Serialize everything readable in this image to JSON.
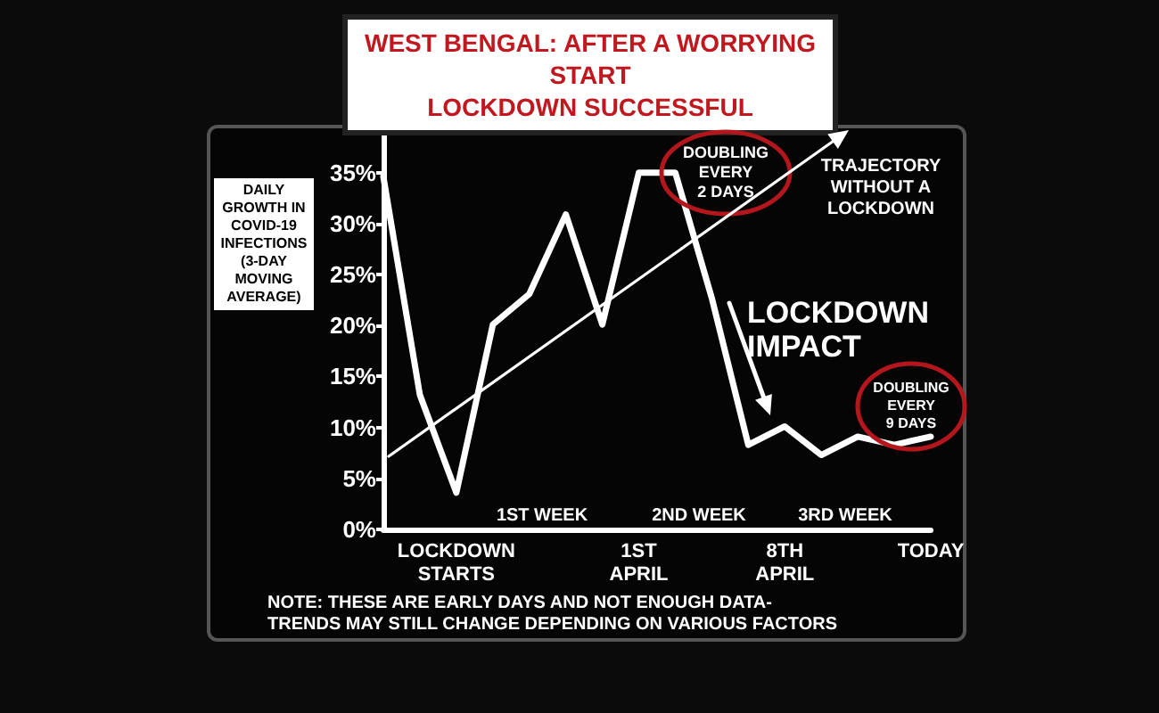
{
  "chart_data": {
    "type": "line",
    "title": "WEST BENGAL: AFTER A WORRYING START\nLOCKDOWN SUCCESSFUL",
    "ylabel": "DAILY GROWTH IN COVID-19 INFECTIONS (3-DAY MOVING AVERAGE)",
    "categories": [
      null,
      null,
      "LOCKDOWN\nSTARTS",
      null,
      null,
      null,
      null,
      "1ST\nAPRIL",
      null,
      null,
      null,
      "8TH\nAPRIL",
      null,
      null,
      null,
      "TODAY"
    ],
    "series": [
      {
        "color": "#ffffff",
        "values": [
          34.6,
          13.2,
          3.6,
          20.1,
          23.1,
          30.9,
          20.1,
          35,
          35,
          22.7,
          8.3,
          10.1,
          7.3,
          9.1,
          8.3,
          9.1
        ]
      }
    ],
    "ylim": [
      0,
      39
    ],
    "yticks": [
      {
        "value": 0,
        "label": "0%"
      },
      {
        "value": 5,
        "label": "5%"
      },
      {
        "value": 10,
        "label": "10%"
      },
      {
        "value": 15,
        "label": "15%"
      },
      {
        "value": 20,
        "label": "20%"
      },
      {
        "value": 25,
        "label": "25%"
      },
      {
        "value": 30,
        "label": "30%"
      },
      {
        "value": 35,
        "label": "35%"
      }
    ],
    "annotations": [
      "DOUBLING\nEVERY\n2 DAYS",
      "TRAJECTORY\nWITHOUT A\nLOCKDOWN",
      "LOCKDOWN\nIMPACT",
      "DOUBLING\nEVERY\n9 DAYS",
      "1ST WEEK",
      "2ND WEEK",
      "3RD WEEK",
      "NOTE: THESE ARE EARLY DAYS AND NOT ENOUGH DATA-\nTRENDS MAY STILL CHANGE DEPENDING ON VARIOUS FACTORS"
    ],
    "grid": false,
    "marker": "none",
    "line_style": "solid"
  }
}
